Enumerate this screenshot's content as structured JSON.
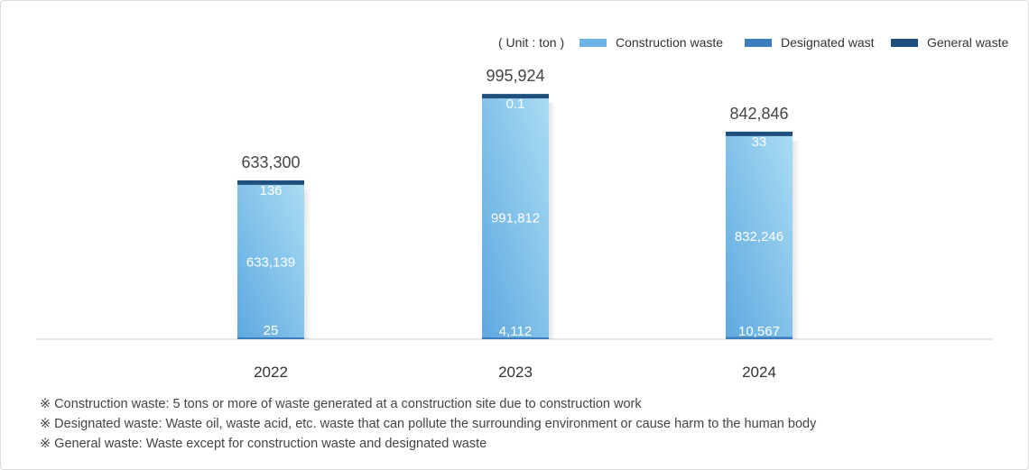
{
  "chart_data": {
    "type": "bar",
    "stacked": true,
    "unit_label": "( Unit : ton )",
    "categories": [
      "2022",
      "2023",
      "2024"
    ],
    "series": [
      {
        "name": "Designated wast",
        "color": "#3b7dbf",
        "values": [
          25,
          4112,
          10567
        ]
      },
      {
        "name": "Construction waste",
        "color": "#6cb3e6",
        "values": [
          633139,
          991812,
          832246
        ]
      },
      {
        "name": "General waste",
        "color": "#1f4f7d",
        "values": [
          136,
          0.1,
          33
        ]
      }
    ],
    "data_labels": [
      [
        "25",
        "633,139",
        "136"
      ],
      [
        "4,112",
        "991,812",
        "0.1"
      ],
      [
        "10,567",
        "832,246",
        "33"
      ]
    ],
    "totals": [
      "633,300",
      "995,924",
      "842,846"
    ],
    "legend_order": [
      "Construction waste",
      "Designated wast",
      "General waste"
    ],
    "legend_position": "top-right",
    "ylim": [
      0,
      1000000
    ],
    "grid": false
  },
  "notes": [
    "※ Construction waste: 5 tons or more of waste generated at a construction site due to construction work",
    "※ Designated waste:  Waste oil, waste acid, etc. waste that can pollute the surrounding environment or cause harm to the human body",
    "※ General waste: Waste except for construction waste and designated waste"
  ]
}
